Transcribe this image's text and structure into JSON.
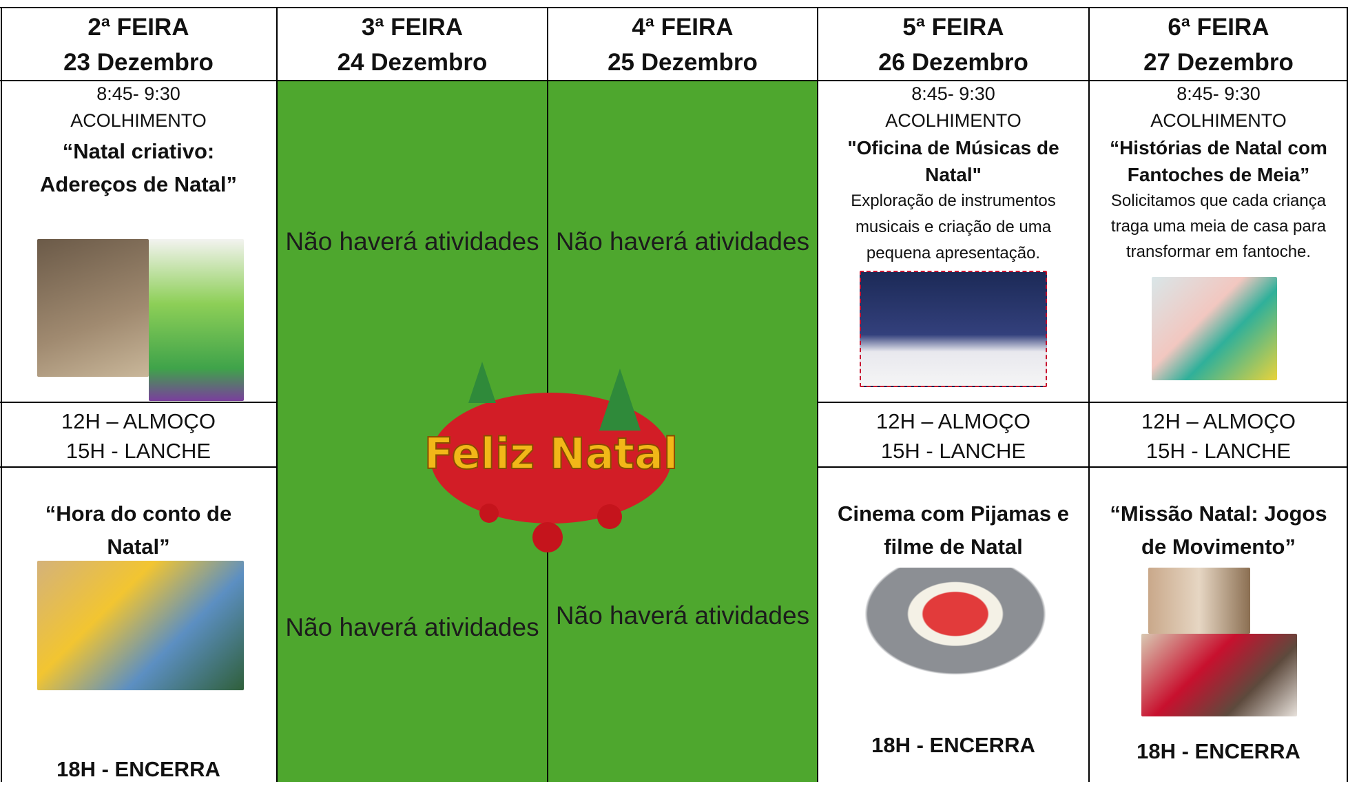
{
  "columns": [
    {
      "day": "2ª FEIRA",
      "date": "23 Dezembro",
      "morning": {
        "time": "8:45- 9:30",
        "welcome": "ACOLHIMENTO",
        "title": "“Natal criativo: Adereços de Natal”"
      },
      "midday": [
        "12H – ALMOÇO",
        "15H - LANCHE"
      ],
      "afternoon": {
        "title": "“Hora do conto de Natal”",
        "closing": "18H - ENCERRA"
      }
    },
    {
      "day": "3ª FEIRA",
      "date": "24 Dezembro",
      "notices": [
        "Não haverá atividades",
        "Não haverá atividades"
      ]
    },
    {
      "day": "4ª FEIRA",
      "date": "25 Dezembro",
      "notices": [
        "Não haverá atividades",
        "Não haverá atividades"
      ]
    },
    {
      "day": "5ª FEIRA",
      "date": "26 Dezembro",
      "morning": {
        "time": "8:45- 9:30",
        "welcome": "ACOLHIMENTO",
        "title": "\"Oficina de Músicas de Natal\"",
        "description": "Exploração de instrumentos musicais e criação de uma pequena apresentação."
      },
      "midday": [
        "12H – ALMOÇO",
        "15H - LANCHE"
      ],
      "afternoon": {
        "title": "Cinema com Pijamas e filme de Natal",
        "closing": "18H - ENCERRA"
      }
    },
    {
      "day": "6ª FEIRA",
      "date": "27 Dezembro",
      "morning": {
        "time": "8:45- 9:30",
        "welcome": "ACOLHIMENTO",
        "title": "“Histórias de Natal com Fantoches de Meia”",
        "description": "Solicitamos que cada criança traga uma meia de casa para transformar em fantoche."
      },
      "midday": [
        "12H – ALMOÇO",
        "15H - LANCHE"
      ],
      "afternoon": {
        "title": "“Missão Natal: Jogos de Movimento”",
        "closing": "18H - ENCERRA"
      }
    }
  ],
  "banner": "Feliz Natal"
}
